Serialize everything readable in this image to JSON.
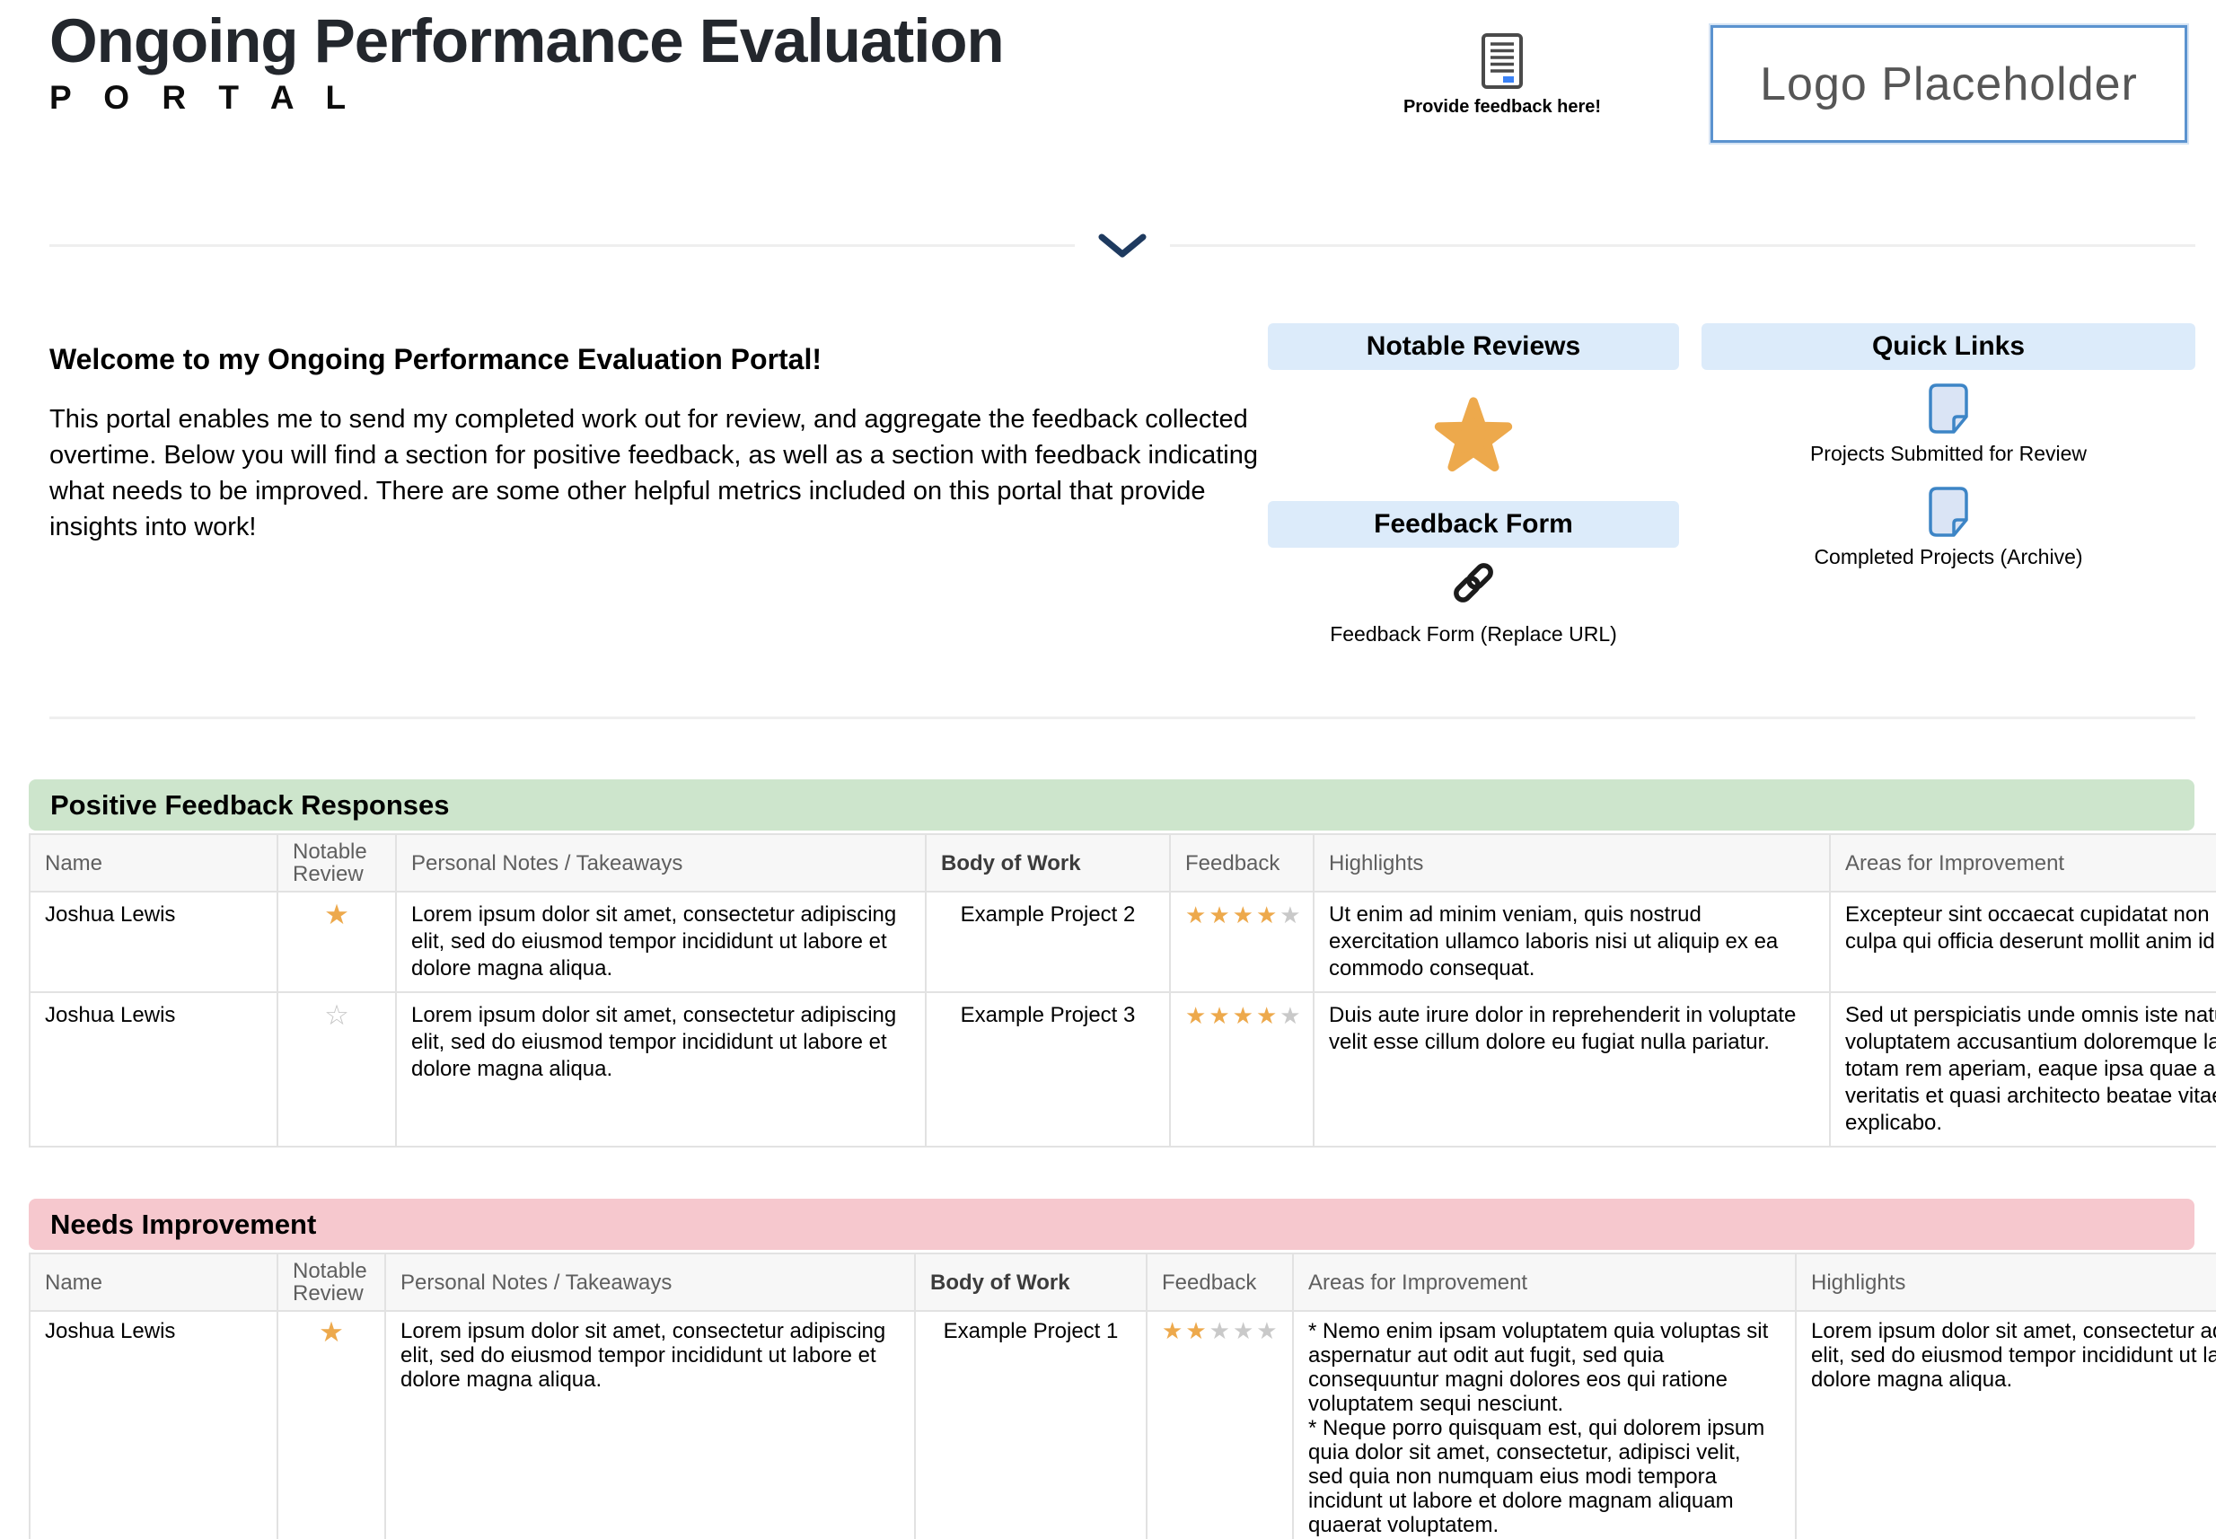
{
  "header": {
    "title": "Ongoing Performance Evaluation",
    "subtitle": "P O R T A L",
    "feedback_cta": "Provide feedback here!",
    "logo_text": "Logo Placeholder"
  },
  "intro": {
    "heading": "Welcome to my Ongoing Performance Evaluation Portal!",
    "body": "This portal enables me to send my completed work out for review, and aggregate the feedback collected overtime. Below you will find a section for positive feedback, as well as a section with feedback indicating what needs to be improved. There are some other helpful metrics included on this portal that provide insights into work!"
  },
  "panels": {
    "notable_reviews": {
      "title": "Notable Reviews"
    },
    "feedback_form": {
      "title": "Feedback Form",
      "link_label": "Feedback Form (Replace URL)"
    },
    "quick_links": {
      "title": "Quick Links",
      "links": [
        {
          "label": "Projects Submitted for Review"
        },
        {
          "label": "Completed Projects (Archive)"
        }
      ]
    }
  },
  "positive_table": {
    "title": "Positive Feedback Responses",
    "columns": [
      "Name",
      "Notable Review",
      "Personal Notes / Takeaways",
      "Body of Work",
      "Feedback",
      "Highlights",
      "Areas for Improvement"
    ],
    "rows": [
      {
        "name": "Joshua Lewis",
        "notable": true,
        "notes": "Lorem ipsum dolor sit amet, consectetur adipiscing elit, sed do eiusmod tempor incididunt ut labore et dolore magna aliqua.",
        "body_of_work": "Example Project 2",
        "rating": 4,
        "highlights": "Ut enim ad minim veniam, quis nostrud exercitation ullamco laboris nisi ut aliquip ex ea commodo consequat.",
        "areas": "Excepteur sint occaecat cupidatat non proident, sunt in culpa qui officia deserunt mollit anim id est laborum."
      },
      {
        "name": "Joshua Lewis",
        "notable": false,
        "notes": "Lorem ipsum dolor sit amet, consectetur adipiscing elit, sed do eiusmod tempor incididunt ut labore et dolore magna aliqua.",
        "body_of_work": "Example Project 3",
        "rating": 4,
        "highlights": "Duis aute irure dolor in reprehenderit in voluptate velit esse cillum dolore eu fugiat nulla pariatur.",
        "areas": "Sed ut perspiciatis unde omnis iste natus error sit voluptatem accusantium doloremque laudantium, totam rem aperiam, eaque ipsa quae ab illo inventore veritatis et quasi architecto beatae vitae dicta sunt explicabo."
      }
    ]
  },
  "needs_table": {
    "title": "Needs Improvement",
    "columns": [
      "Name",
      "Notable Review",
      "Personal Notes / Takeaways",
      "Body of Work",
      "Feedback",
      "Areas for Improvement",
      "Highlights"
    ],
    "rows": [
      {
        "name": "Joshua Lewis",
        "notable": true,
        "notes": "Lorem ipsum dolor sit amet, consectetur adipiscing elit, sed do eiusmod tempor incididunt ut labore et dolore magna aliqua.",
        "body_of_work": "Example Project 1",
        "rating": 2,
        "areas": "* Nemo enim ipsam voluptatem quia voluptas sit aspernatur aut odit aut fugit, sed quia consequuntur magni dolores eos qui ratione voluptatem sequi nesciunt.\n* Neque porro quisquam est, qui dolorem ipsum quia dolor sit amet, consectetur, adipisci velit, sed quia non numquam eius modi tempora incidunt ut labore et dolore magnam aliquam quaerat voluptatem.",
        "highlights": "Lorem ipsum dolor sit amet, consectetur adipiscing elit, sed do eiusmod tempor incididunt ut labore et dolore magna aliqua."
      }
    ]
  },
  "colors": {
    "positive_header_bg": "#cde5cc",
    "needs_header_bg": "#f6c8ce",
    "panel_header_bg": "#dcebfa",
    "star_filled": "#eda94c",
    "star_empty": "#c9c9c9",
    "accent_blue": "#3b82f6",
    "chevron_navy": "#1e3a5f",
    "doc_icon_blue": "#3d85c6"
  }
}
